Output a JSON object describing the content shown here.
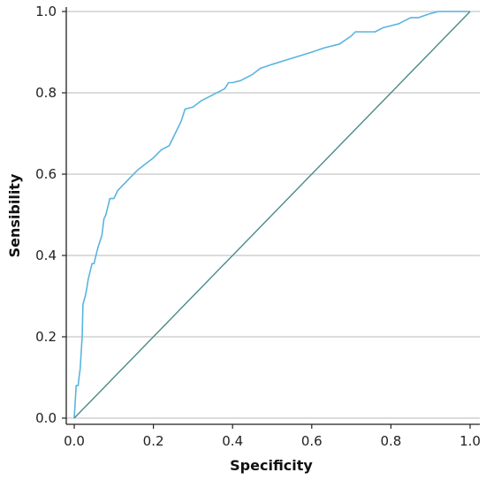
{
  "chart_data": {
    "type": "line",
    "title": "",
    "xlabel": "Specificity",
    "ylabel": "Sensibility",
    "xlim": [
      0.0,
      1.0
    ],
    "ylim": [
      0.0,
      1.0
    ],
    "x_ticks": [
      "0.0",
      "0.2",
      "0.4",
      "0.6",
      "0.8",
      "1.0"
    ],
    "y_ticks": [
      "0.0",
      "0.2",
      "0.4",
      "0.6",
      "0.8",
      "1.0"
    ],
    "grid": "horizontal",
    "legend": "none",
    "series": [
      {
        "color": "#5ab4e0",
        "x": [
          0.0,
          0.005,
          0.01,
          0.012,
          0.015,
          0.02,
          0.022,
          0.025,
          0.028,
          0.032,
          0.035,
          0.04,
          0.045,
          0.05,
          0.055,
          0.06,
          0.07,
          0.075,
          0.08,
          0.085,
          0.09,
          0.1,
          0.11,
          0.12,
          0.14,
          0.16,
          0.18,
          0.2,
          0.22,
          0.24,
          0.25,
          0.27,
          0.28,
          0.3,
          0.32,
          0.35,
          0.38,
          0.39,
          0.4,
          0.42,
          0.45,
          0.47,
          0.5,
          0.55,
          0.6,
          0.63,
          0.67,
          0.7,
          0.71,
          0.73,
          0.76,
          0.78,
          0.8,
          0.82,
          0.84,
          0.85,
          0.87,
          0.9,
          0.92,
          0.96,
          1.0
        ],
        "y": [
          0.0,
          0.08,
          0.08,
          0.1,
          0.12,
          0.2,
          0.28,
          0.29,
          0.3,
          0.32,
          0.34,
          0.36,
          0.38,
          0.38,
          0.4,
          0.42,
          0.45,
          0.49,
          0.5,
          0.52,
          0.54,
          0.54,
          0.56,
          0.57,
          0.59,
          0.61,
          0.625,
          0.64,
          0.66,
          0.67,
          0.69,
          0.73,
          0.76,
          0.765,
          0.78,
          0.795,
          0.81,
          0.825,
          0.825,
          0.83,
          0.845,
          0.86,
          0.87,
          0.885,
          0.9,
          0.91,
          0.92,
          0.94,
          0.95,
          0.95,
          0.95,
          0.96,
          0.965,
          0.97,
          0.98,
          0.985,
          0.985,
          0.995,
          1.0,
          1.0,
          1.0
        ]
      },
      {
        "color": "#4a8a88",
        "x": [
          0.0,
          1.0
        ],
        "y": [
          0.0,
          1.0
        ]
      }
    ]
  }
}
